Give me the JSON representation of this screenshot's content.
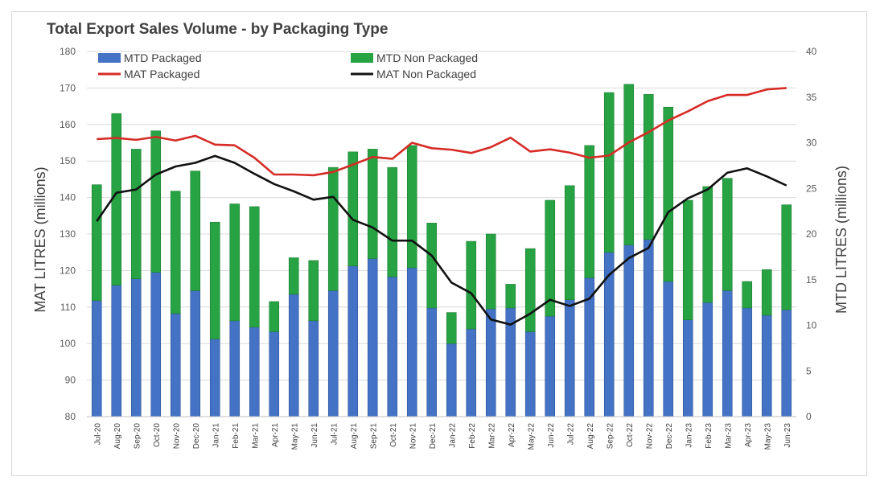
{
  "chart_data": {
    "type": "bar",
    "title": "Total Export Sales Volume - by Packaging Type",
    "ylabel": "MAT LITRES (millions)",
    "y2label": "MTD LITRES (millions)",
    "ylim": [
      80,
      180
    ],
    "y2lim": [
      0,
      40
    ],
    "yticks": [
      "80",
      "90",
      "100",
      "110",
      "120",
      "130",
      "140",
      "150",
      "160",
      "170",
      "180"
    ],
    "y2ticks": [
      "0",
      "5",
      "10",
      "15",
      "20",
      "25",
      "30",
      "35",
      "40"
    ],
    "categories": [
      "Jul-20",
      "Aug-20",
      "Sep-20",
      "Oct-20",
      "Nov-20",
      "Dec-20",
      "Jan-21",
      "Feb-21",
      "Mar-21",
      "Apr-21",
      "May-21",
      "Jun-21",
      "Jul-21",
      "Aug-21",
      "Sep-21",
      "Oct-21",
      "Nov-21",
      "Dec-21",
      "Jan-22",
      "Feb-22",
      "Mar-22",
      "Apr-22",
      "May-22",
      "Jun-22",
      "Jul-22",
      "Aug-22",
      "Sep-22",
      "Oct-22",
      "Nov-22",
      "Dec-22",
      "Jan-23",
      "Feb-23",
      "Mar-23",
      "Apr-23",
      "May-23",
      "Jun-23"
    ],
    "series": [
      {
        "name": "MTD Packaged",
        "kind": "stacked-bar",
        "axis": "right",
        "color": "#4472c4",
        "values": [
          12.7,
          14.4,
          15.1,
          15.8,
          11.3,
          13.8,
          8.5,
          10.5,
          9.8,
          9.3,
          13.4,
          10.5,
          13.8,
          16.5,
          17.3,
          15.3,
          16.3,
          11.9,
          8.0,
          9.6,
          11.8,
          11.9,
          9.3,
          11.0,
          12.8,
          15.2,
          18.0,
          18.8,
          19.4,
          14.8,
          10.6,
          12.5,
          13.8,
          11.9,
          11.1,
          11.7
        ]
      },
      {
        "name": "MTD Non Packaged",
        "kind": "stacked-bar",
        "axis": "right",
        "color": "#27a344",
        "values": [
          12.7,
          18.8,
          14.2,
          15.5,
          13.4,
          13.1,
          12.8,
          12.8,
          13.2,
          3.3,
          4.0,
          6.6,
          13.5,
          12.5,
          12.0,
          12.0,
          13.4,
          9.3,
          3.4,
          9.6,
          8.2,
          2.6,
          9.1,
          12.7,
          12.5,
          14.5,
          17.5,
          17.6,
          15.9,
          19.1,
          13.1,
          12.7,
          12.3,
          2.9,
          5.0,
          11.5
        ]
      },
      {
        "name": "MAT Packaged",
        "kind": "line",
        "axis": "left",
        "color": "#d62b26",
        "values": [
          156.0,
          156.3,
          155.8,
          156.6,
          155.6,
          156.9,
          154.5,
          154.3,
          150.9,
          146.3,
          146.3,
          146.1,
          147.0,
          149.0,
          151.1,
          150.6,
          155.0,
          153.5,
          153.1,
          152.2,
          153.8,
          156.4,
          152.6,
          153.2,
          152.3,
          150.9,
          151.5,
          155.1,
          157.9,
          161.1,
          163.6,
          166.4,
          168.1,
          168.1,
          169.6,
          170.0
        ]
      },
      {
        "name": "MAT Non Packaged",
        "kind": "line",
        "axis": "left",
        "color": "#111111",
        "values": [
          133.5,
          141.3,
          142.2,
          146.3,
          148.5,
          149.5,
          151.4,
          149.5,
          146.5,
          143.7,
          141.7,
          139.4,
          140.2,
          133.9,
          131.8,
          128.2,
          128.2,
          124.1,
          116.7,
          113.8,
          106.6,
          105.2,
          108.2,
          112.0,
          110.3,
          112.3,
          118.8,
          123.4,
          126.2,
          136.0,
          139.8,
          142.2,
          146.8,
          148.0,
          145.8,
          143.3
        ]
      }
    ],
    "legend": [
      "MTD Packaged",
      "MTD Non Packaged",
      "MAT Packaged",
      "MAT Non Packaged"
    ],
    "legend_position": "top"
  }
}
